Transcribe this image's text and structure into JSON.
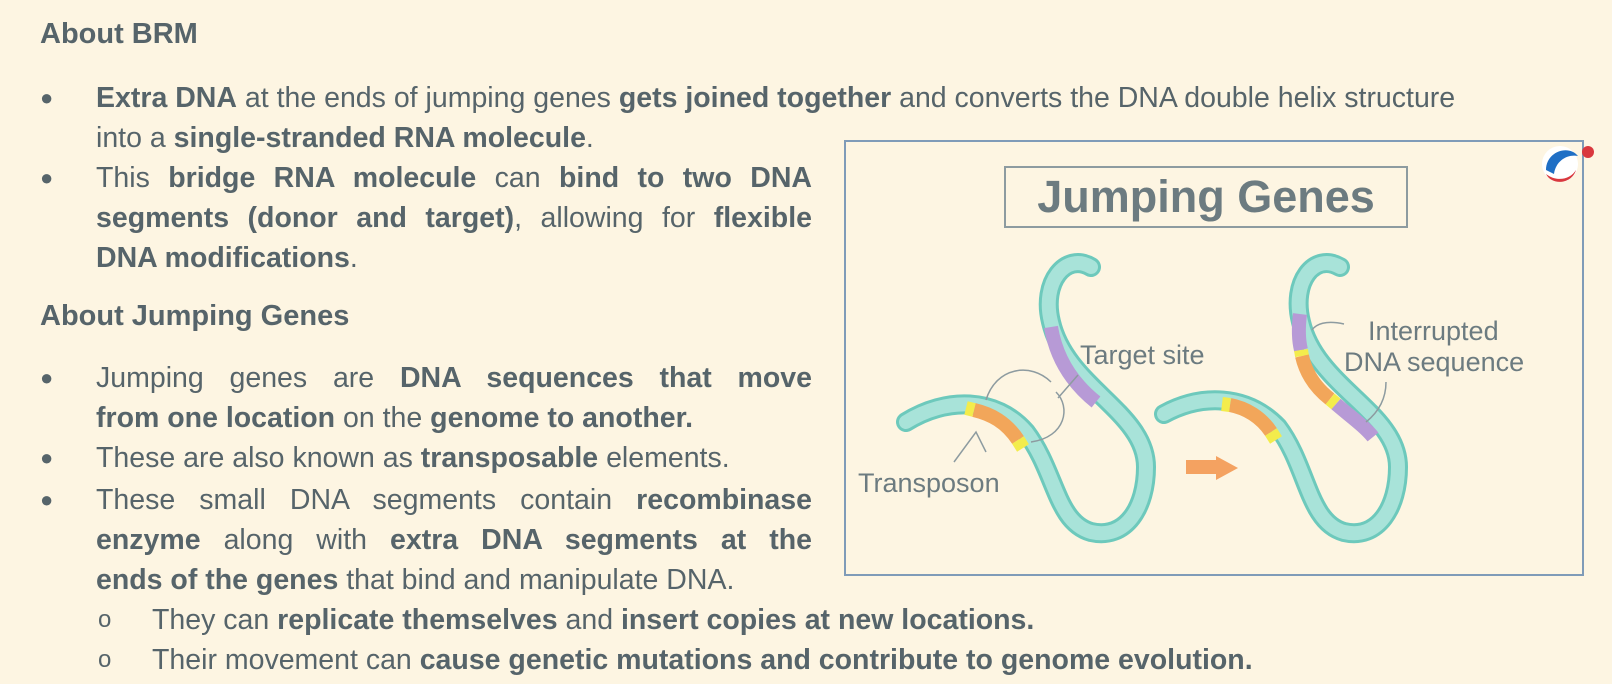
{
  "section1": {
    "heading": "About BRM",
    "b1_l1": [
      {
        "t": "Extra DNA",
        "b": true
      },
      {
        "t": " at the ends of jumping genes ",
        "b": false
      },
      {
        "t": "gets joined together",
        "b": true
      },
      {
        "t": " and converts the DNA double helix structure",
        "b": false
      }
    ],
    "b1_l2": [
      {
        "t": "into a ",
        "b": false
      },
      {
        "t": "single-stranded RNA molecule",
        "b": true
      },
      {
        "t": ".",
        "b": false
      }
    ],
    "b2_l1": [
      {
        "t": "This ",
        "b": false
      },
      {
        "t": "bridge RNA molecule",
        "b": true
      },
      {
        "t": " can ",
        "b": false
      },
      {
        "t": "bind to two DNA",
        "b": true
      }
    ],
    "b2_l2": [
      {
        "t": "segments (donor and target)",
        "b": true
      },
      {
        "t": ", allowing for ",
        "b": false
      },
      {
        "t": "flexible",
        "b": true
      }
    ],
    "b2_l3": [
      {
        "t": "DNA modifications",
        "b": true
      },
      {
        "t": ".",
        "b": false
      }
    ]
  },
  "section2": {
    "heading": "About Jumping Genes",
    "b1_l1": [
      {
        "t": "Jumping genes   are ",
        "b": false
      },
      {
        "t": "DNA sequences that move",
        "b": true
      }
    ],
    "b1_l2": [
      {
        "t": "from one location",
        "b": true
      },
      {
        "t": " on the ",
        "b": false
      },
      {
        "t": "genome to another.",
        "b": true
      }
    ],
    "b2_l1": [
      {
        "t": "These are also known as ",
        "b": false
      },
      {
        "t": "transposable",
        "b": true
      },
      {
        "t": " elements.",
        "b": false
      }
    ],
    "b3_l1": [
      {
        "t": "These small DNA segments contain ",
        "b": false
      },
      {
        "t": "recombinase",
        "b": true
      }
    ],
    "b3_l2": [
      {
        "t": "enzyme",
        "b": true
      },
      {
        "t": " along with ",
        "b": false
      },
      {
        "t": "extra DNA segments at the",
        "b": true
      }
    ],
    "b3_l3": [
      {
        "t": "ends of the genes",
        "b": true
      },
      {
        "t": " that bind and manipulate DNA.",
        "b": false
      }
    ],
    "s1_l1": [
      {
        "t": "They can ",
        "b": false
      },
      {
        "t": "replicate themselves",
        "b": true
      },
      {
        "t": " and ",
        "b": false
      },
      {
        "t": "insert copies at new locations.",
        "b": true
      }
    ],
    "s2_l1": [
      {
        "t": "Their movement can ",
        "b": false
      },
      {
        "t": "cause genetic mutations and contribute to genome evolution.",
        "b": true
      }
    ]
  },
  "bullet_symbol": "●",
  "subbullet_symbol": "o",
  "figure": {
    "title": "Jumping Genes",
    "label_target": "Target site",
    "label_transposon": "Transposon",
    "label_interrupted_1": "Interrupted",
    "label_interrupted_2": "DNA sequence"
  },
  "colors": {
    "strand_fill": "#a8e3d9",
    "strand_edge": "#6dc9bc",
    "transposon": "#f2a65a",
    "target": "#b79ad6",
    "marker": "#f3ec4c",
    "arrow": "#f4a261",
    "frame": "#7f9bb8",
    "background": "#fdf5e2"
  }
}
